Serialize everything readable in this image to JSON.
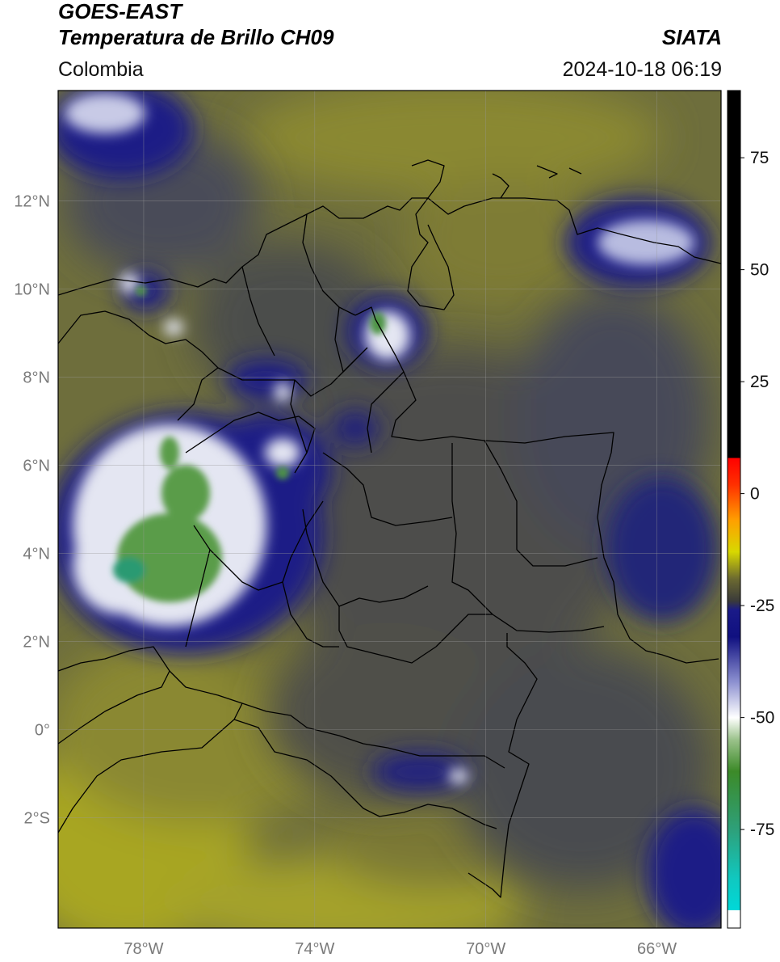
{
  "header": {
    "satellite": "GOES-EAST",
    "product": "Temperatura de Brillo CH09",
    "agency": "SIATA",
    "region": "Colombia",
    "timestamp": "2024-10-18 06:19"
  },
  "map": {
    "lon_range": [
      -80,
      -64.5
    ],
    "lat_range": [
      -4.5,
      14.5
    ],
    "lon_ticks": [
      {
        "value": -78,
        "label": "78°W"
      },
      {
        "value": -74,
        "label": "74°W"
      },
      {
        "value": -70,
        "label": "70°W"
      },
      {
        "value": -66,
        "label": "66°W"
      }
    ],
    "lat_ticks": [
      {
        "value": 12,
        "label": "12°N"
      },
      {
        "value": 10,
        "label": "10°N"
      },
      {
        "value": 8,
        "label": "8°N"
      },
      {
        "value": 6,
        "label": "6°N"
      },
      {
        "value": 4,
        "label": "4°N"
      },
      {
        "value": 2,
        "label": "2°N"
      },
      {
        "value": 0,
        "label": "0°"
      },
      {
        "value": -2,
        "label": "2°S"
      }
    ],
    "colors": {
      "warm_background": "#6e6e3c",
      "land_gray": "#4e4f4a",
      "ocean_olive": "#84822e",
      "cold_blue": "#1c1e86",
      "cold_white": "#e4e6f2",
      "coldest_green": "#4e9444",
      "coldest_teal": "#2a9a72",
      "border": "#000000",
      "grid": "#9a9a9a"
    }
  },
  "colorbar": {
    "min": -97,
    "max": 90,
    "ticks": [
      {
        "value": 75,
        "label": "75"
      },
      {
        "value": 50,
        "label": "50"
      },
      {
        "value": 25,
        "label": "25"
      },
      {
        "value": 0,
        "label": "0"
      },
      {
        "value": -25,
        "label": "-25"
      },
      {
        "value": -50,
        "label": "-50"
      },
      {
        "value": -75,
        "label": "-75"
      }
    ],
    "stops": [
      {
        "value": -97,
        "color": "#ffffff"
      },
      {
        "value": -93,
        "color": "#ffffff"
      },
      {
        "value": -93,
        "color": "#00d8d8"
      },
      {
        "value": -86,
        "color": "#10c8c0"
      },
      {
        "value": -75,
        "color": "#2ea07a"
      },
      {
        "value": -62,
        "color": "#3c8a28"
      },
      {
        "value": -55,
        "color": "#9ac28a"
      },
      {
        "value": -50,
        "color": "#ffffff"
      },
      {
        "value": -42,
        "color": "#8c90d0"
      },
      {
        "value": -32,
        "color": "#101080"
      },
      {
        "value": -26,
        "color": "#1a1a88"
      },
      {
        "value": -24,
        "color": "#3a3a3a"
      },
      {
        "value": -19,
        "color": "#6c6a30"
      },
      {
        "value": -13,
        "color": "#d8d800"
      },
      {
        "value": -6,
        "color": "#ffa000"
      },
      {
        "value": 2,
        "color": "#ff3000"
      },
      {
        "value": 8,
        "color": "#ff0000"
      },
      {
        "value": 8,
        "color": "#000000"
      },
      {
        "value": 90,
        "color": "#000000"
      }
    ]
  }
}
